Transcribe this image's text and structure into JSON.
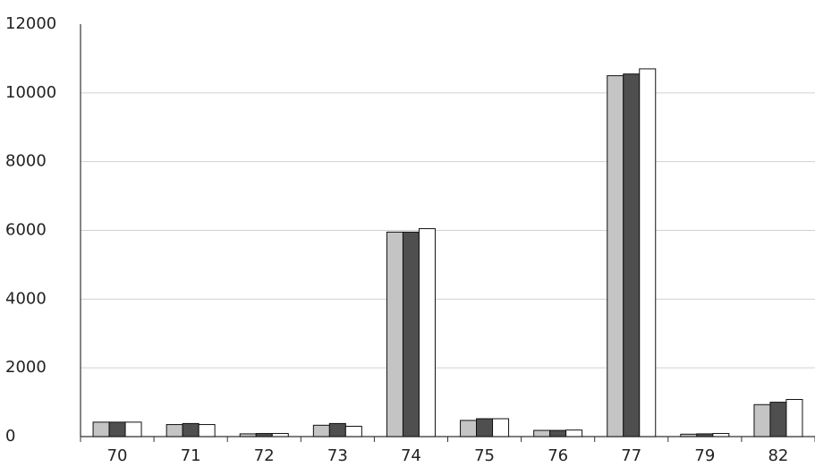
{
  "chart_data": {
    "type": "bar",
    "categories": [
      "70",
      "71",
      "72",
      "73",
      "74",
      "75",
      "76",
      "77",
      "79",
      "82"
    ],
    "series": [
      {
        "color": "#c4c4c4",
        "values": [
          420,
          350,
          80,
          330,
          5950,
          470,
          180,
          10500,
          70,
          930
        ]
      },
      {
        "color": "#4f4f4f",
        "values": [
          420,
          380,
          90,
          380,
          5950,
          520,
          180,
          10550,
          80,
          1000
        ]
      },
      {
        "color": "#ffffff",
        "values": [
          420,
          350,
          90,
          300,
          6050,
          520,
          190,
          10700,
          90,
          1080
        ]
      }
    ],
    "ylim": [
      0,
      12000
    ],
    "yticks": [
      0,
      2000,
      4000,
      6000,
      8000,
      10000,
      12000
    ],
    "grid": true
  }
}
